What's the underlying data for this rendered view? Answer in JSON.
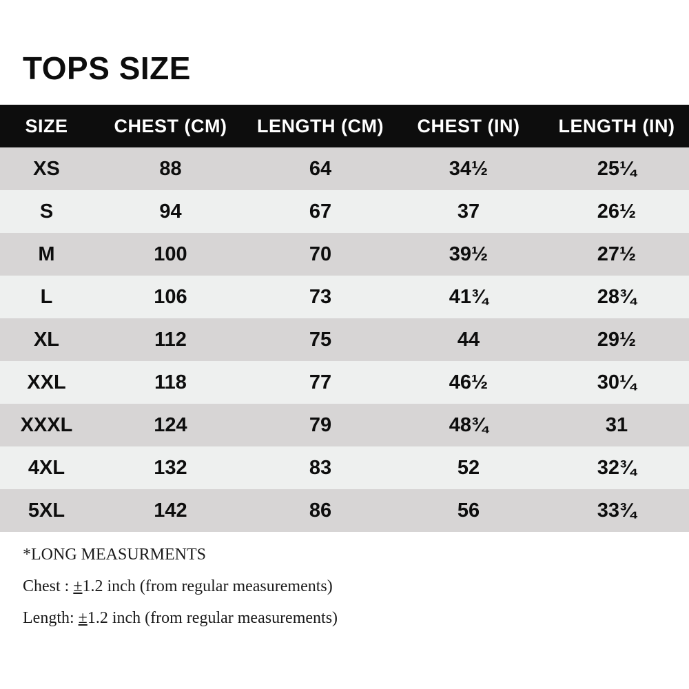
{
  "title": "TOPS SIZE",
  "table": {
    "headers": [
      "SIZE",
      "CHEST (CM)",
      "LENGTH (CM)",
      "CHEST (IN)",
      "LENGTH (IN)"
    ],
    "rows": [
      [
        "XS",
        "88",
        "64",
        "34½",
        "25¼"
      ],
      [
        "S",
        "94",
        "67",
        "37",
        "26½"
      ],
      [
        "M",
        "100",
        "70",
        "39½",
        "27½"
      ],
      [
        "L",
        "106",
        "73",
        "41¾",
        "28¾"
      ],
      [
        "XL",
        "112",
        "75",
        "44",
        "29½"
      ],
      [
        "XXL",
        "118",
        "77",
        "46½",
        "30¼"
      ],
      [
        "XXXL",
        "124",
        "79",
        "48¾",
        "31"
      ],
      [
        "4XL",
        "132",
        "83",
        "52",
        "32¾"
      ],
      [
        "5XL",
        "142",
        "86",
        "56",
        "33¾"
      ]
    ]
  },
  "notes": {
    "heading": "*LONG MEASURMENTS",
    "chest_prefix": "Chest : ",
    "chest_pm": "±",
    "chest_rest": "1.2 inch (from regular measurements)",
    "length_prefix": "Length: ",
    "length_pm": "±",
    "length_rest": "1.2 inch (from regular measurements)"
  },
  "colors": {
    "header_bg": "#0d0d0d",
    "header_text": "#ffffff",
    "row_dark": "#d7d5d5",
    "row_light": "#eef0ef",
    "text": "#111111"
  }
}
